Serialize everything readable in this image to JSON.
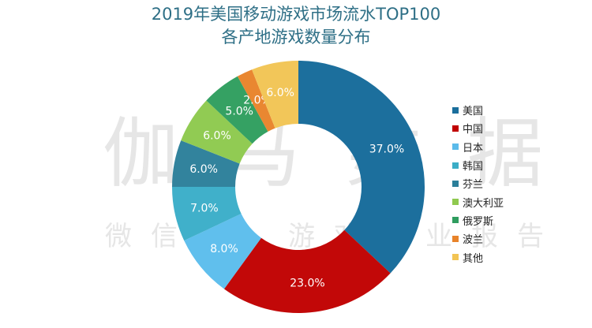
{
  "title": {
    "line1": "2019年美国移动游戏市场流水TOP100",
    "line2": "各产地游戏数量分布"
  },
  "watermark": {
    "main": "伽马数据",
    "sub": "微信号：游戏产业报告"
  },
  "legend": [
    {
      "label": "美国",
      "color": "#1a6e9c"
    },
    {
      "label": "中国",
      "color": "#c00000"
    },
    {
      "label": "日本",
      "color": "#5bbbea"
    },
    {
      "label": "韩国",
      "color": "#3badc6"
    },
    {
      "label": "芬兰",
      "color": "#2b7f9a"
    },
    {
      "label": "澳大利亚",
      "color": "#8fc94f"
    },
    {
      "label": "俄罗斯",
      "color": "#2f9d5f"
    },
    {
      "label": "波兰",
      "color": "#e8832a"
    },
    {
      "label": "其他",
      "color": "#f2c454"
    }
  ],
  "chart_data": {
    "type": "pie",
    "subtype": "donut",
    "title": "2019年美国移动游戏市场流水TOP100 各产地游戏数量分布",
    "categories": [
      "美国",
      "中国",
      "日本",
      "韩国",
      "芬兰",
      "澳大利亚",
      "俄罗斯",
      "波兰",
      "其他"
    ],
    "values": [
      37.0,
      23.0,
      8.0,
      7.0,
      6.0,
      6.0,
      5.0,
      2.0,
      6.0
    ],
    "labels": [
      "37.0%",
      "23.0%",
      "8.0%",
      "7.0%",
      "6.0%",
      "6.0%",
      "5.0%",
      "2.0%",
      "6.0%"
    ],
    "colors": [
      "#156a9a",
      "#c00000",
      "#5bbdec",
      "#3aadc8",
      "#2b7f9a",
      "#8dc94d",
      "#2e9e5e",
      "#e8832a",
      "#f2c454"
    ],
    "start_angle": "12 o'clock",
    "direction": "clockwise",
    "legend_position": "right",
    "unit": "%"
  }
}
